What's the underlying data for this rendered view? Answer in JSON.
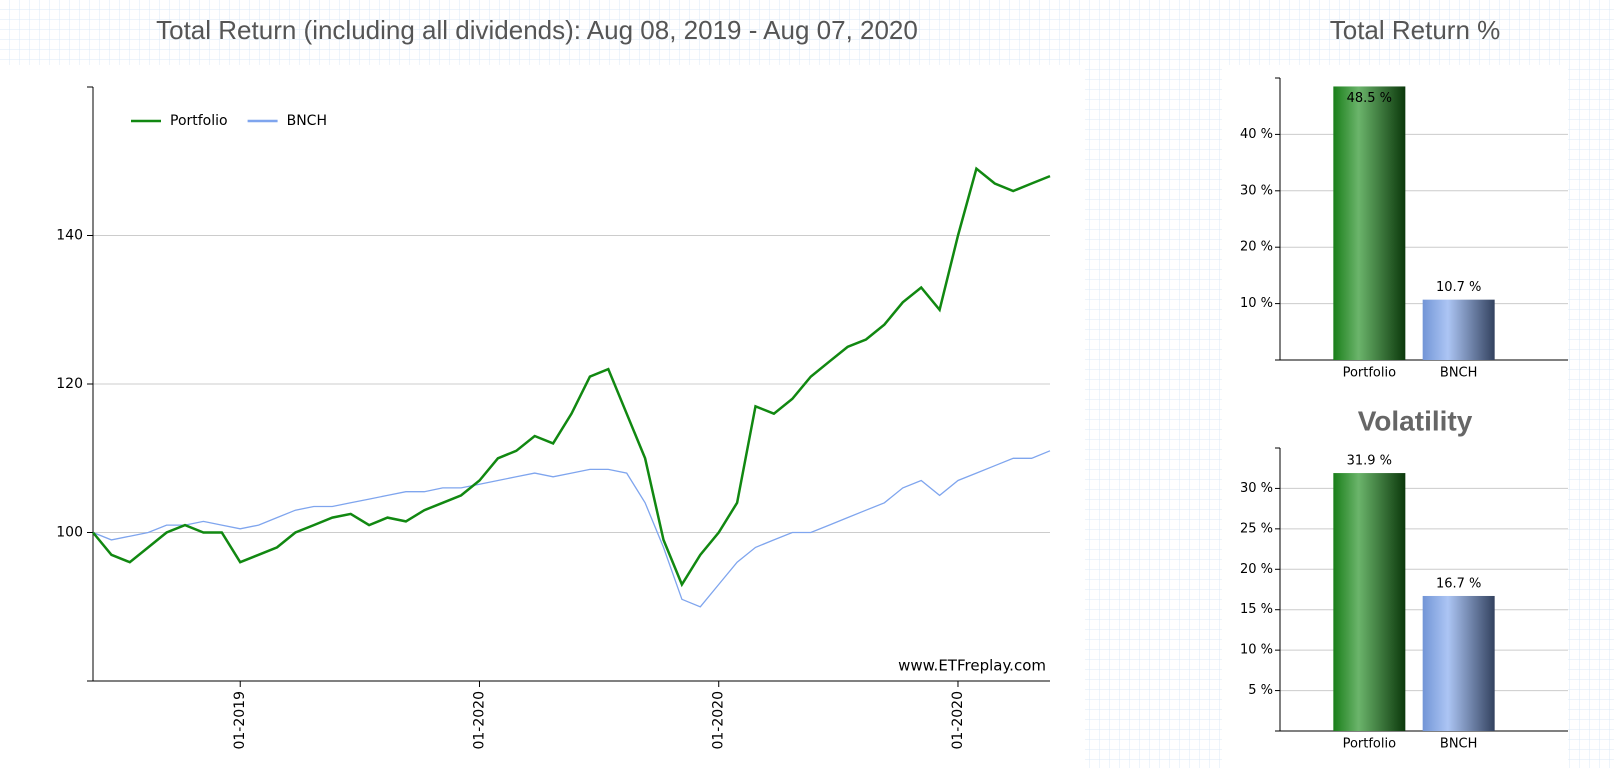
{
  "chart_data": [
    {
      "type": "line",
      "title": "Total Return (including all dividends): Aug 08, 2019 - Aug 07, 2020",
      "annotation": "www.ETFreplay.com",
      "categories": [
        null,
        null,
        null,
        null,
        null,
        null,
        null,
        null,
        null,
        null,
        null,
        null,
        null,
        null,
        null,
        null,
        null,
        null,
        null,
        null,
        null,
        null,
        null,
        null,
        null,
        null,
        null,
        null,
        null,
        null,
        null,
        null,
        null,
        null,
        null,
        null,
        null,
        null,
        null,
        null,
        null,
        null,
        null,
        null,
        null,
        null,
        null,
        null,
        null,
        null,
        null,
        null,
        null
      ],
      "series": [
        {
          "name": "Portfolio",
          "color": "#118811",
          "values": [
            100,
            97,
            96,
            98,
            100,
            101,
            100,
            100,
            96,
            97,
            98,
            100,
            101,
            102,
            102.5,
            101,
            102,
            101.5,
            103,
            104,
            105,
            107,
            110,
            111,
            113,
            112,
            116,
            121,
            122,
            116,
            110,
            99,
            93,
            97,
            100,
            104,
            117,
            116,
            118,
            121,
            123,
            125,
            126,
            128,
            131,
            133,
            130,
            140,
            149,
            147,
            146,
            147,
            148
          ]
        },
        {
          "name": "BNCH",
          "color": "#7fa5ee",
          "values": [
            100,
            99,
            99.5,
            100,
            101,
            101,
            101.5,
            101,
            100.5,
            101,
            102,
            103,
            103.5,
            103.5,
            104,
            104.5,
            105,
            105.5,
            105.5,
            106,
            106,
            106.5,
            107,
            107.5,
            108,
            107.5,
            108,
            108.5,
            108.5,
            108,
            104,
            98,
            91,
            90,
            93,
            96,
            98,
            99,
            100,
            100,
            101,
            102,
            103,
            104,
            106,
            107,
            105,
            107,
            108,
            109,
            110,
            110,
            111
          ]
        }
      ],
      "xticks": [
        {
          "value": 8,
          "label": "01-2019"
        },
        {
          "value": 21,
          "label": "01-2020"
        },
        {
          "value": 34,
          "label": "01-2020"
        },
        {
          "value": 47,
          "label": "01-2020"
        }
      ],
      "ylim": [
        80,
        160
      ],
      "yticks": [
        100,
        120,
        140
      ],
      "grid": true,
      "legend": "upper left"
    },
    {
      "type": "bar",
      "title": "Total Return %",
      "categories": [
        "Portfolio",
        "BNCH"
      ],
      "series": [
        {
          "name": "Total Return %",
          "colors": [
            "#1c8c1c",
            "#7fa5ee"
          ],
          "values": [
            48.5,
            10.7
          ],
          "value_labels": [
            "48.5 %",
            "10.7 %"
          ]
        }
      ],
      "ylim": [
        0,
        50
      ],
      "yticks": [
        {
          "value": 10,
          "label": "10 %"
        },
        {
          "value": 20,
          "label": "20 %"
        },
        {
          "value": 30,
          "label": "30 %"
        },
        {
          "value": 40,
          "label": "40 %"
        }
      ],
      "grid": true
    },
    {
      "type": "bar",
      "title": "Volatility",
      "categories": [
        "Portfolio",
        "BNCH"
      ],
      "series": [
        {
          "name": "Volatility",
          "colors": [
            "#1c8c1c",
            "#7fa5ee"
          ],
          "values": [
            31.9,
            16.7
          ],
          "value_labels": [
            "31.9 %",
            "16.7 %"
          ]
        }
      ],
      "ylim": [
        0,
        35
      ],
      "yticks": [
        {
          "value": 5,
          "label": "5 %"
        },
        {
          "value": 10,
          "label": "10 %"
        },
        {
          "value": 15,
          "label": "15 %"
        },
        {
          "value": 20,
          "label": "20 %"
        },
        {
          "value": 25,
          "label": "25 %"
        },
        {
          "value": 30,
          "label": "30 %"
        }
      ],
      "grid": true
    }
  ]
}
